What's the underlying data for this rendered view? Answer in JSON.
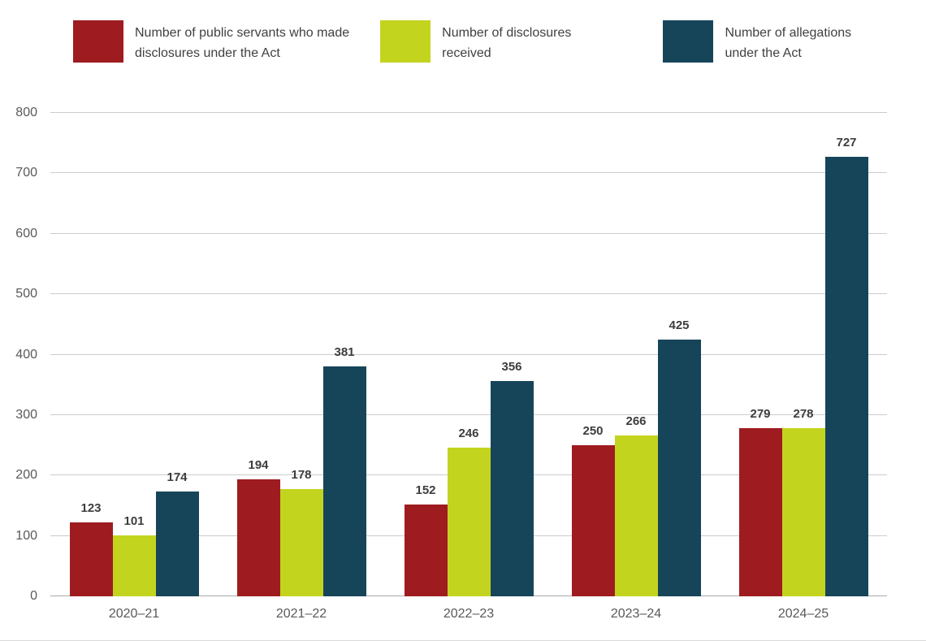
{
  "chart_data": {
    "type": "bar",
    "title": "",
    "categories": [
      "2020–21",
      "2021–22",
      "2022–23",
      "2023–24",
      "2024–25"
    ],
    "series": [
      {
        "name": "Number of public servants who made disclosures under the Act",
        "color": "#9e1c20",
        "values": [
          123,
          194,
          152,
          250,
          279
        ]
      },
      {
        "name": "Number of disclosures received",
        "color": "#c3d41f",
        "values": [
          101,
          178,
          246,
          266,
          278
        ]
      },
      {
        "name": "Number of allegations under the Act",
        "color": "#16455a",
        "values": [
          174,
          381,
          356,
          425,
          727
        ]
      }
    ],
    "xlabel": "",
    "ylabel": "",
    "ylim": [
      0,
      800
    ],
    "ytick_step": 100,
    "grid": true,
    "legend_position": "top"
  },
  "style": {
    "gridline_color": "#cccccc",
    "axis_label_color": "#595959",
    "data_label_color": "#3d3d3d",
    "background": "#ffffff"
  }
}
